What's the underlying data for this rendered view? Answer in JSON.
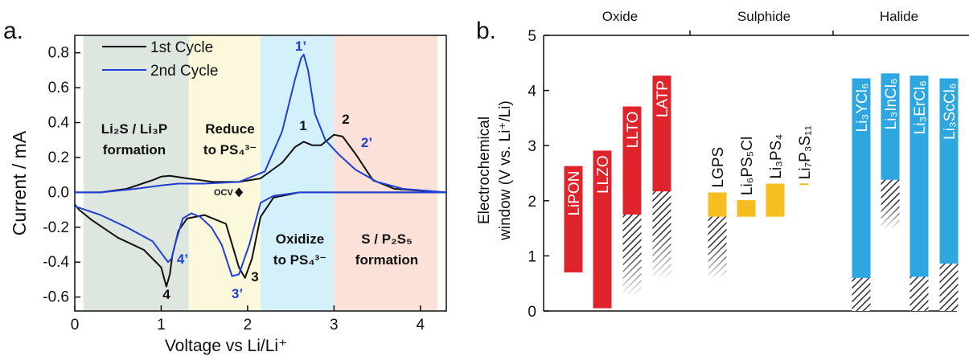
{
  "colors": {
    "cycle1": "#111111",
    "cycle2": "#1f3fd6",
    "axis": "#111111",
    "oxide_bar": "#e0242b",
    "sulphide_bar": "#f5bd1f",
    "halide_bar": "#2ea7e0"
  },
  "panel_a": {
    "label": "a.",
    "legend": [
      "1st Cycle",
      "2nd Cycle"
    ],
    "region_labels": {
      "r1a": "Li₂S / Li₃P",
      "r1b": "formation",
      "r2a": "Reduce",
      "r2b": "to PS₄³⁻",
      "r3a": "Oxidize",
      "r3b": "to PS₄³⁻",
      "r4a": "S / P₂S₅",
      "r4b": "formation"
    },
    "peak_labels": [
      "1",
      "2",
      "3",
      "4",
      "1’",
      "2’",
      "3’",
      "4’"
    ],
    "ocv_label": "OCV"
  },
  "panel_b": {
    "label": "b.",
    "ylabel_line1": "Electrochemical",
    "ylabel_line2": "window (V vs. Li⁺/Li)",
    "groups": [
      "Oxide",
      "Sulphide",
      "Halide"
    ]
  },
  "chart_data": [
    {
      "type": "line",
      "xlabel": "Voltage vs Li/Li⁺",
      "ylabel": "Current / mA",
      "xlim": [
        0,
        4.3
      ],
      "ylim": [
        -0.68,
        0.9
      ],
      "xticks": [
        0,
        1,
        2,
        3,
        4
      ],
      "yticks": [
        0.8,
        0.6,
        0.4,
        0.2,
        0.0,
        -0.2,
        -0.4,
        -0.6
      ],
      "shaded_regions": [
        {
          "from": 0.1,
          "to": 1.32,
          "color": "#dde6df"
        },
        {
          "from": 1.32,
          "to": 2.15,
          "color": "#fbf8dc"
        },
        {
          "from": 2.15,
          "to": 3.0,
          "color": "#d4f1fb"
        },
        {
          "from": 3.0,
          "to": 4.2,
          "color": "#fbe1d7"
        }
      ],
      "series": [
        {
          "name": "1st Cycle",
          "x": [
            0,
            0.3,
            0.6,
            0.9,
            1.0,
            1.1,
            1.3,
            1.6,
            1.9,
            2.15,
            2.4,
            2.55,
            2.65,
            2.75,
            2.85,
            3.0,
            3.1,
            3.25,
            3.45,
            3.7,
            4.3,
            3.7,
            3.1,
            2.6,
            2.3,
            2.15,
            2.05,
            1.97,
            1.9,
            1.75,
            1.5,
            1.3,
            1.2,
            1.13,
            1.1,
            1.06,
            1.0,
            0.8,
            0.5,
            0.2,
            0.05,
            0
          ],
          "y": [
            0.0,
            0.0,
            0.02,
            0.07,
            0.09,
            0.095,
            0.08,
            0.06,
            0.06,
            0.08,
            0.17,
            0.26,
            0.29,
            0.27,
            0.27,
            0.33,
            0.32,
            0.22,
            0.07,
            0.02,
            0.0,
            0.0,
            0.0,
            0.0,
            -0.03,
            -0.14,
            -0.38,
            -0.49,
            -0.43,
            -0.18,
            -0.13,
            -0.15,
            -0.22,
            -0.36,
            -0.47,
            -0.54,
            -0.43,
            -0.33,
            -0.26,
            -0.16,
            -0.1,
            -0.07
          ],
          "peaks": [
            {
              "label": "1",
              "x": 2.63,
              "y": 0.29
            },
            {
              "label": "2",
              "x": 3.0,
              "y": 0.33
            },
            {
              "label": "3",
              "x": 1.97,
              "y": -0.49
            },
            {
              "label": "4",
              "x": 1.06,
              "y": -0.54
            }
          ]
        },
        {
          "name": "2nd Cycle",
          "x": [
            0,
            0.3,
            0.7,
            1.0,
            1.2,
            1.5,
            1.9,
            2.2,
            2.4,
            2.55,
            2.62,
            2.65,
            2.7,
            2.78,
            2.9,
            3.05,
            3.25,
            3.5,
            3.8,
            4.3,
            3.7,
            3.1,
            2.6,
            2.3,
            2.15,
            2.02,
            1.9,
            1.82,
            1.7,
            1.58,
            1.45,
            1.35,
            1.25,
            1.17,
            1.12,
            1.08,
            0.9,
            0.6,
            0.3,
            0
          ],
          "y": [
            0.0,
            0.0,
            0.02,
            0.04,
            0.05,
            0.05,
            0.06,
            0.12,
            0.35,
            0.65,
            0.77,
            0.79,
            0.7,
            0.45,
            0.3,
            0.22,
            0.13,
            0.06,
            0.02,
            0.0,
            0.0,
            0.0,
            0.0,
            -0.02,
            -0.06,
            -0.3,
            -0.47,
            -0.48,
            -0.3,
            -0.2,
            -0.14,
            -0.12,
            -0.15,
            -0.28,
            -0.38,
            -0.4,
            -0.28,
            -0.2,
            -0.13,
            -0.08
          ],
          "peaks": [
            {
              "label": "1’",
              "x": 2.65,
              "y": 0.79
            },
            {
              "label": "2’",
              "x": 3.25,
              "y": 0.13
            },
            {
              "label": "3’",
              "x": 1.85,
              "y": -0.48
            },
            {
              "label": "4’",
              "x": 1.1,
              "y": -0.4
            }
          ]
        }
      ],
      "ocv": {
        "x": 1.9,
        "y": 0.0
      }
    },
    {
      "type": "bar",
      "ylim": [
        0,
        5
      ],
      "yticks": [
        0,
        1,
        2,
        3,
        4,
        5
      ],
      "groups": [
        "Oxide",
        "Sulphide",
        "Halide"
      ],
      "bars": [
        {
          "label": "LiPON",
          "group": "Oxide",
          "low": 0.7,
          "high": 2.63,
          "hatch_low": null,
          "hatch_high": null
        },
        {
          "label": "LLZO",
          "group": "Oxide",
          "low": 0.05,
          "high": 2.91,
          "hatch_low": null,
          "hatch_high": null
        },
        {
          "label": "LLTO",
          "group": "Oxide",
          "low": 0.3,
          "high": 3.71,
          "hatch_low": 0.3,
          "hatch_high": 1.75
        },
        {
          "label": "LATP",
          "group": "Oxide",
          "low": 0.6,
          "high": 4.27,
          "hatch_low": 0.6,
          "hatch_high": 2.17
        },
        {
          "label": "LGPS",
          "group": "Sulphide",
          "low": 0.6,
          "high": 2.15,
          "hatch_low": 0.6,
          "hatch_high": 1.71
        },
        {
          "label": "Li₆PS₅Cl",
          "group": "Sulphide",
          "low": 1.71,
          "high": 2.01,
          "hatch_low": null,
          "hatch_high": null
        },
        {
          "label": "Li₃PS₄",
          "group": "Sulphide",
          "low": 1.71,
          "high": 2.31,
          "hatch_low": null,
          "hatch_high": null
        },
        {
          "label": "Li₇P₃S₁₁",
          "group": "Sulphide",
          "low": 2.28,
          "high": 2.3,
          "hatch_low": null,
          "hatch_high": null
        },
        {
          "label": "Li₃YCl₆",
          "group": "Halide",
          "low": 0.0,
          "high": 4.22,
          "hatch_low": 0.0,
          "hatch_high": 0.6
        },
        {
          "label": "Li₃InCl₆",
          "group": "Halide",
          "low": 1.5,
          "high": 4.31,
          "hatch_low": 1.5,
          "hatch_high": 2.38
        },
        {
          "label": "Li₃ErCl₆",
          "group": "Halide",
          "low": 0.0,
          "high": 4.27,
          "hatch_low": 0.0,
          "hatch_high": 0.62
        },
        {
          "label": "Li₃ScCl₆",
          "group": "Halide",
          "low": 0.0,
          "high": 4.22,
          "hatch_low": 0.0,
          "hatch_high": 0.86
        }
      ]
    }
  ]
}
